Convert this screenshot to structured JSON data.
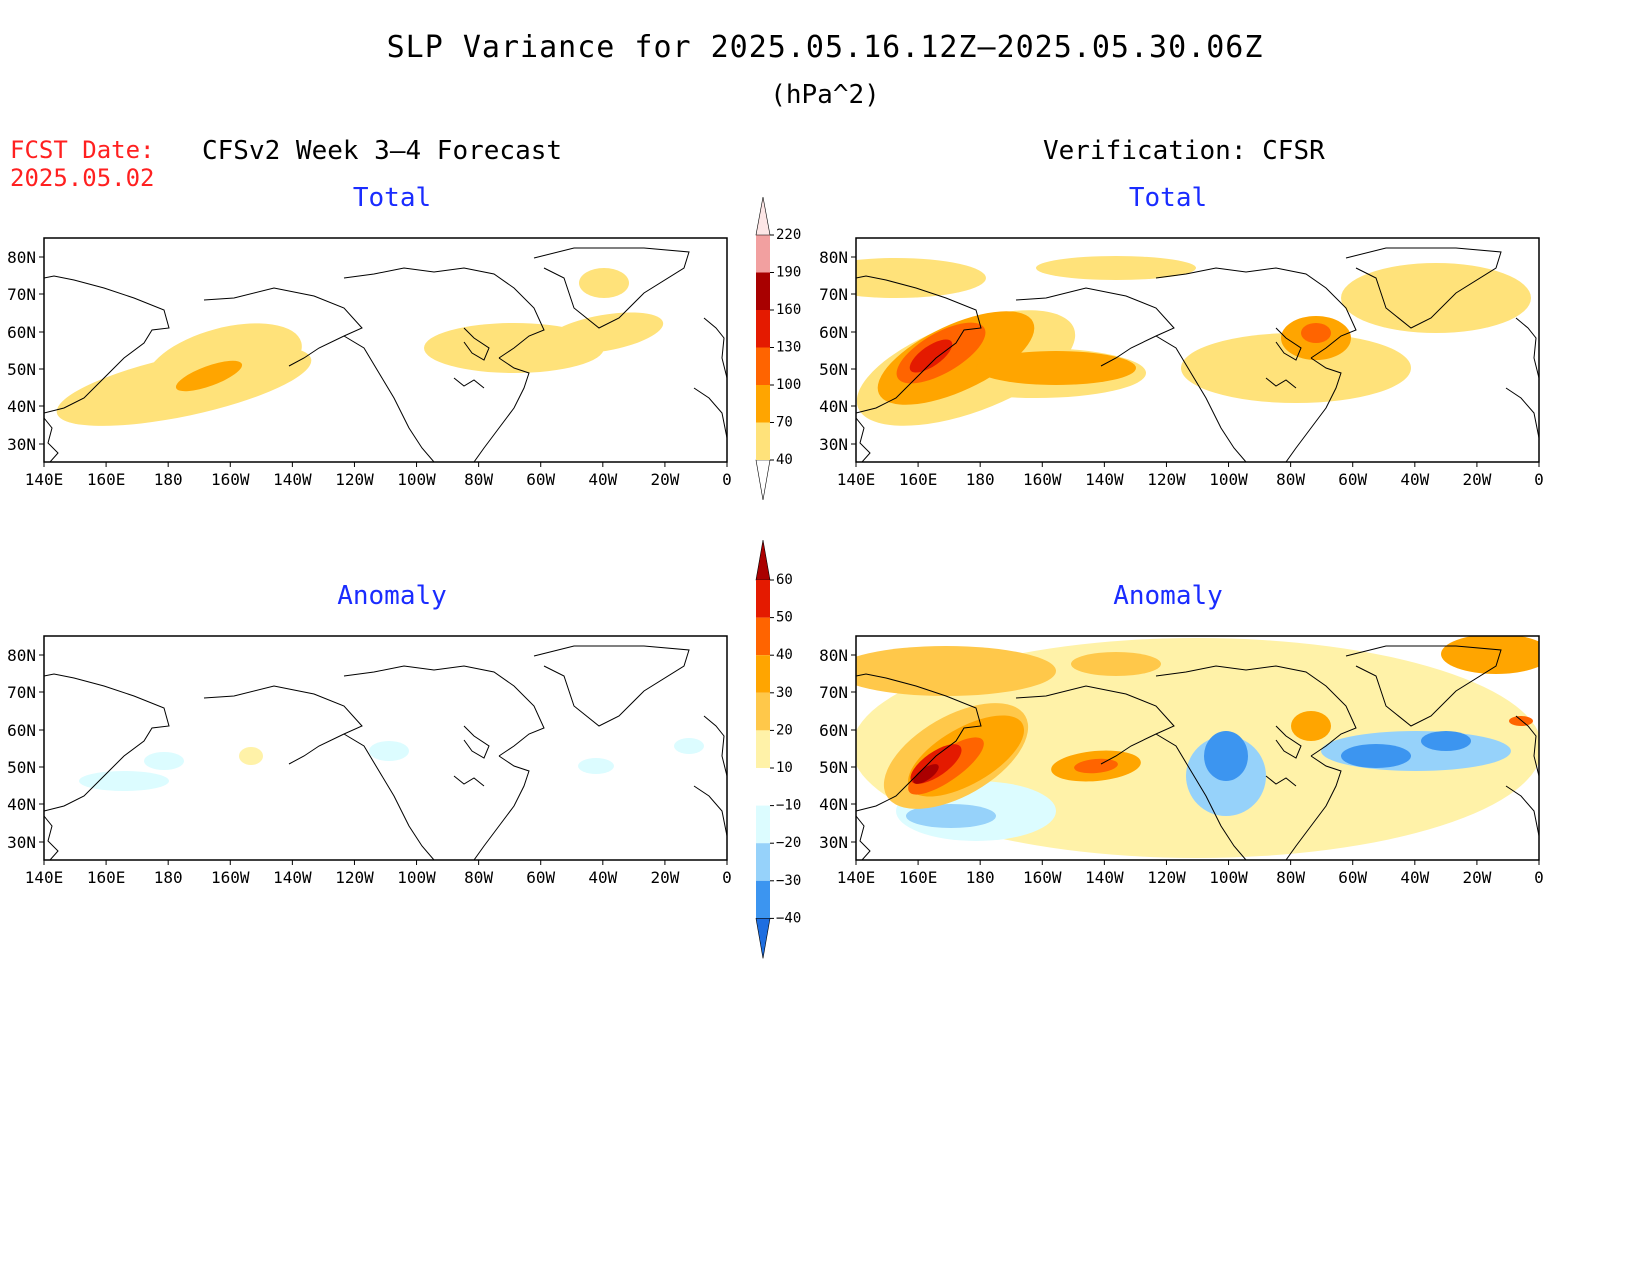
{
  "title": "SLP Variance for 2025.05.16.12Z–2025.05.30.06Z",
  "units": "(hPa^2)",
  "fcst_date": {
    "label": "FCST Date:",
    "value": "2025.05.02"
  },
  "column_headers": {
    "left": "CFSv2 Week 3–4 Forecast",
    "right": "Verification: CFSR"
  },
  "panels": [
    {
      "id": "fcst-total",
      "title": "Total"
    },
    {
      "id": "verif-total",
      "title": "Total"
    },
    {
      "id": "fcst-anomaly",
      "title": "Anomaly"
    },
    {
      "id": "verif-anomaly",
      "title": "Anomaly"
    }
  ],
  "axes": {
    "lon_labels": [
      "140E",
      "160E",
      "180",
      "160W",
      "140W",
      "120W",
      "100W",
      "80W",
      "60W",
      "40W",
      "20W",
      "0"
    ],
    "lat_labels": [
      "80N",
      "70N",
      "60N",
      "50N",
      "40N",
      "30N"
    ]
  },
  "colorbars": {
    "total": {
      "levels": [
        "40",
        "70",
        "100",
        "130",
        "160",
        "190",
        "220"
      ],
      "colors": [
        "#ffe27a",
        "#ffa500",
        "#ff6400",
        "#e41a00",
        "#a80000",
        "#f2a0a0",
        "#fde6e6"
      ]
    },
    "anomaly": {
      "levels": [
        "60",
        "50",
        "40",
        "30",
        "20",
        "10",
        "−10",
        "−20",
        "−30",
        "−40"
      ],
      "colors_top_down": [
        "#aa0000",
        "#e41a00",
        "#ff6400",
        "#ffa500",
        "#ffc84a",
        "#fff2a8",
        "#ffffff",
        "#dcfcff",
        "#96d2fa",
        "#3c95f0",
        "#1e6ee0"
      ]
    }
  }
}
